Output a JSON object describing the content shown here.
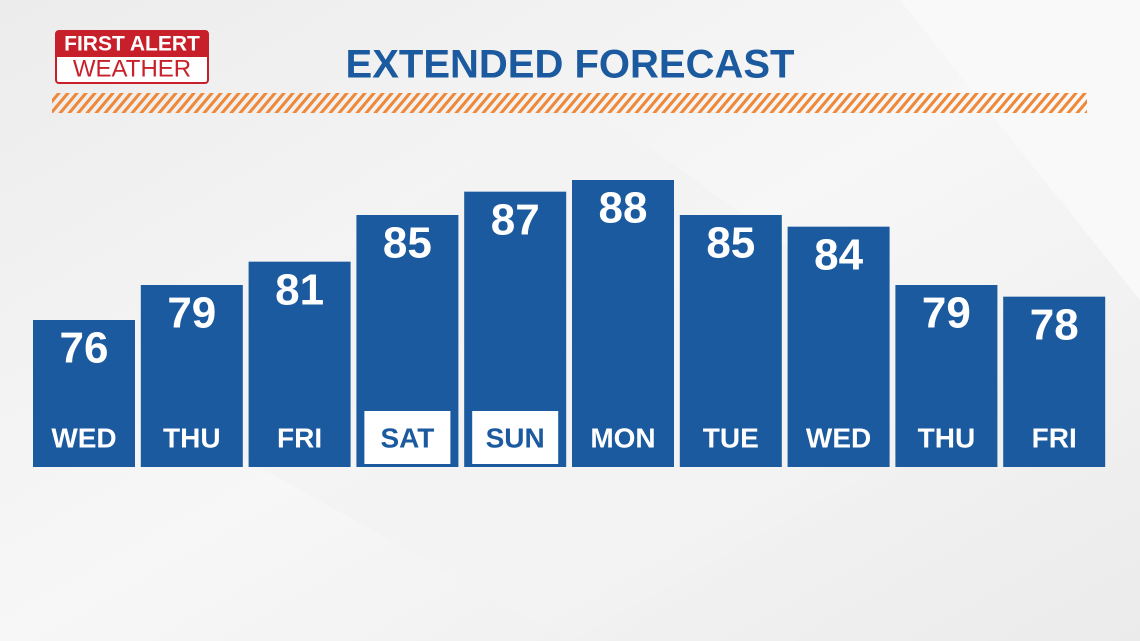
{
  "logo": {
    "line1": "FIRST ALERT",
    "line2": "WEATHER"
  },
  "chart_data": {
    "type": "bar",
    "title": "EXTENDED FORECAST",
    "categories": [
      "WED",
      "THU",
      "FRI",
      "SAT",
      "SUN",
      "MON",
      "TUE",
      "WED",
      "THU",
      "FRI"
    ],
    "values": [
      76,
      79,
      81,
      85,
      87,
      88,
      85,
      84,
      79,
      78
    ],
    "color": "#1c5aa0",
    "highlight": [
      3,
      4
    ],
    "ylim": [
      63.4,
      88
    ]
  }
}
